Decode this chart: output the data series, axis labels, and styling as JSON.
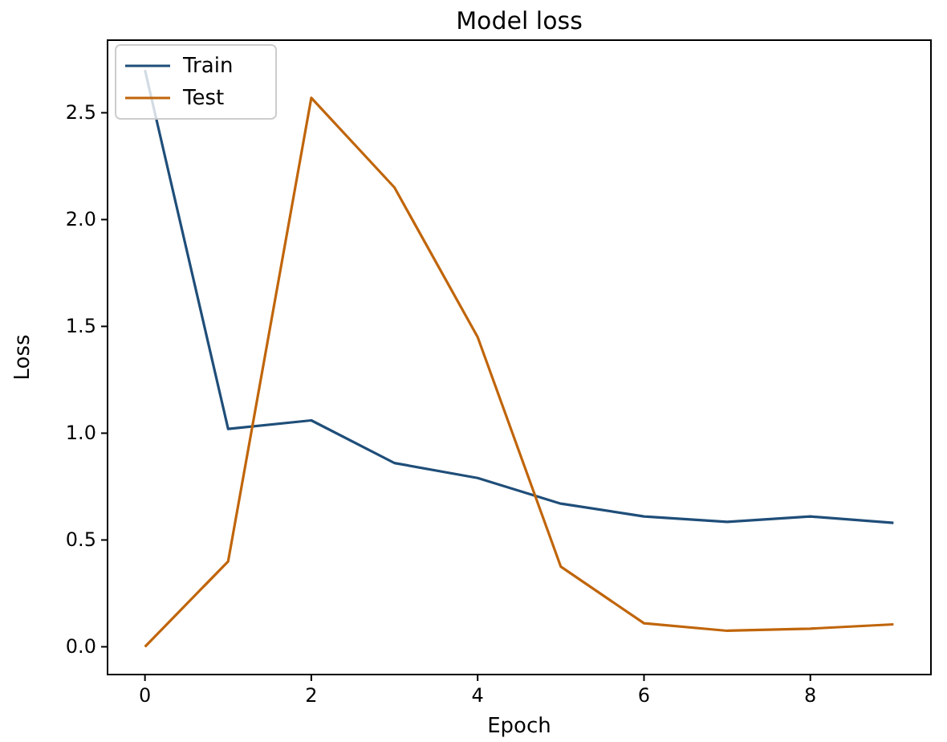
{
  "chart_data": {
    "type": "line",
    "title": "Model loss",
    "xlabel": "Epoch",
    "ylabel": "Loss",
    "x": [
      0,
      1,
      2,
      3,
      4,
      5,
      6,
      7,
      8,
      9
    ],
    "series": [
      {
        "name": "Train",
        "color": "#1f4e79",
        "values": [
          2.7,
          1.02,
          1.06,
          0.86,
          0.79,
          0.67,
          0.61,
          0.585,
          0.61,
          0.58
        ]
      },
      {
        "name": "Test",
        "color": "#c0650a",
        "values": [
          0.0,
          0.4,
          2.57,
          2.15,
          1.45,
          0.375,
          0.11,
          0.075,
          0.085,
          0.105
        ]
      }
    ],
    "xlim": [
      -0.45,
      9.45
    ],
    "xticks": [
      0,
      2,
      4,
      6,
      8
    ],
    "ylim": [
      -0.13,
      2.84
    ],
    "yticks": [
      {
        "value": 0,
        "label": "0.0"
      },
      {
        "value": 0.5,
        "label": "0.5"
      },
      {
        "value": 1,
        "label": "1.0"
      },
      {
        "value": 1.5,
        "label": "1.5"
      },
      {
        "value": 2,
        "label": "2.0"
      },
      {
        "value": 2.5,
        "label": "2.5"
      }
    ],
    "legend": "top left",
    "grid": false,
    "marker": "none",
    "line_style": "solid"
  }
}
